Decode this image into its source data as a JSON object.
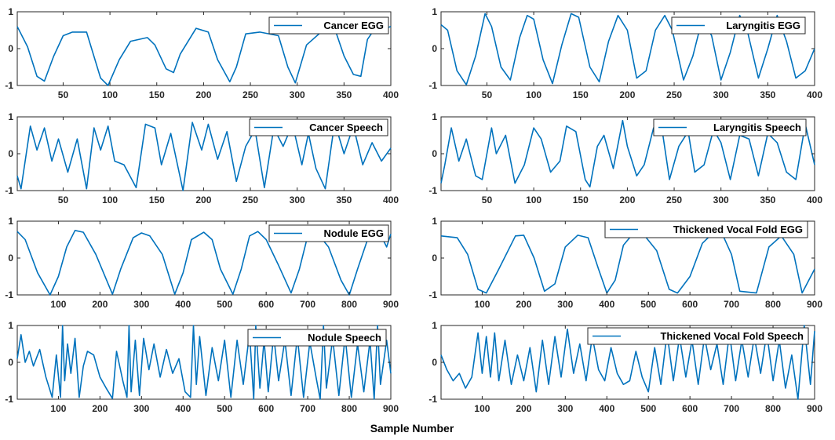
{
  "figure": {
    "xlabel": "Sample Number"
  },
  "chart_data": [
    {
      "type": "line",
      "legend": "Cancer EGG",
      "xlim": [
        1,
        400
      ],
      "ylim": [
        -1,
        1
      ],
      "xticks": [
        50,
        100,
        150,
        200,
        250,
        300,
        350,
        400
      ],
      "yticks": [
        -1,
        0,
        1
      ],
      "x": [
        1,
        12,
        22,
        30,
        40,
        50,
        60,
        75,
        90,
        98,
        110,
        122,
        140,
        148,
        160,
        168,
        175,
        192,
        205,
        215,
        228,
        235,
        245,
        260,
        280,
        290,
        298,
        310,
        330,
        340,
        350,
        360,
        368,
        375,
        385,
        395,
        400
      ],
      "y": [
        0.6,
        0.05,
        -0.75,
        -0.88,
        -0.2,
        0.35,
        0.45,
        0.45,
        -0.8,
        -1.0,
        -0.3,
        0.2,
        0.3,
        0.1,
        -0.55,
        -0.65,
        -0.15,
        0.55,
        0.45,
        -0.3,
        -0.9,
        -0.5,
        0.4,
        0.45,
        0.35,
        -0.5,
        -0.93,
        0.1,
        0.55,
        0.55,
        -0.2,
        -0.7,
        -0.75,
        0.25,
        0.62,
        0.55,
        0.6
      ],
      "color": "#0072BD"
    },
    {
      "type": "line",
      "legend": "Laryngitis EGG",
      "xlim": [
        1,
        400
      ],
      "ylim": [
        -1,
        1
      ],
      "xticks": [
        50,
        100,
        150,
        200,
        250,
        300,
        350,
        400
      ],
      "yticks": [
        -1,
        0,
        1
      ],
      "x": [
        1,
        8,
        18,
        28,
        38,
        48,
        55,
        65,
        75,
        85,
        93,
        100,
        110,
        120,
        130,
        140,
        148,
        160,
        170,
        180,
        190,
        200,
        210,
        220,
        230,
        240,
        248,
        260,
        270,
        280,
        290,
        300,
        310,
        320,
        328,
        340,
        350,
        360,
        370,
        380,
        390,
        400
      ],
      "y": [
        0.65,
        0.5,
        -0.6,
        -0.98,
        -0.2,
        0.95,
        0.6,
        -0.5,
        -0.85,
        0.3,
        0.9,
        0.8,
        -0.3,
        -0.95,
        0.1,
        0.95,
        0.85,
        -0.5,
        -0.9,
        0.2,
        0.9,
        0.5,
        -0.8,
        -0.6,
        0.5,
        0.9,
        0.5,
        -0.85,
        -0.2,
        0.8,
        0.35,
        -0.85,
        -0.1,
        0.9,
        0.5,
        -0.8,
        0.0,
        0.9,
        0.2,
        -0.8,
        -0.6,
        0.0
      ],
      "color": "#0072BD"
    },
    {
      "type": "line",
      "legend": "Cancer Speech",
      "xlim": [
        1,
        400
      ],
      "ylim": [
        -1,
        1
      ],
      "xticks": [
        50,
        100,
        150,
        200,
        250,
        300,
        350,
        400
      ],
      "yticks": [
        -1,
        0,
        1
      ],
      "x": [
        1,
        5,
        15,
        22,
        30,
        38,
        45,
        55,
        65,
        75,
        83,
        90,
        98,
        105,
        115,
        128,
        138,
        148,
        155,
        165,
        178,
        188,
        198,
        205,
        215,
        225,
        235,
        245,
        255,
        265,
        275,
        285,
        295,
        305,
        312,
        320,
        330,
        340,
        350,
        360,
        370,
        380,
        390,
        400
      ],
      "y": [
        -0.6,
        -0.95,
        0.75,
        0.1,
        0.7,
        -0.2,
        0.4,
        -0.5,
        0.4,
        -0.95,
        0.7,
        0.1,
        0.75,
        -0.2,
        -0.3,
        -0.92,
        0.8,
        0.7,
        -0.3,
        0.55,
        -1.0,
        0.85,
        0.1,
        0.8,
        -0.15,
        0.6,
        -0.75,
        0.2,
        0.65,
        -0.92,
        0.7,
        0.2,
        0.8,
        -0.3,
        0.55,
        -0.4,
        -0.95,
        0.85,
        0.0,
        0.75,
        -0.3,
        0.3,
        -0.2,
        0.15
      ],
      "color": "#0072BD"
    },
    {
      "type": "line",
      "legend": "Laryngitis Speech",
      "xlim": [
        1,
        400
      ],
      "ylim": [
        -1,
        1
      ],
      "xticks": [
        50,
        100,
        150,
        200,
        250,
        300,
        350,
        400
      ],
      "yticks": [
        -1,
        0,
        1
      ],
      "x": [
        1,
        5,
        12,
        20,
        28,
        38,
        45,
        55,
        60,
        70,
        80,
        90,
        100,
        108,
        118,
        128,
        135,
        145,
        155,
        160,
        168,
        175,
        185,
        195,
        200,
        210,
        218,
        228,
        238,
        245,
        255,
        265,
        272,
        282,
        292,
        300,
        310,
        320,
        330,
        340,
        350,
        360,
        370,
        380,
        390,
        400
      ],
      "y": [
        -0.8,
        -0.3,
        0.7,
        -0.2,
        0.4,
        -0.6,
        -0.7,
        0.7,
        0.0,
        0.5,
        -0.8,
        -0.3,
        0.7,
        0.4,
        -0.5,
        -0.2,
        0.75,
        0.6,
        -0.7,
        -0.9,
        0.2,
        0.5,
        -0.4,
        0.9,
        0.2,
        -0.6,
        -0.3,
        0.7,
        0.5,
        -0.7,
        0.2,
        0.6,
        -0.5,
        -0.3,
        0.65,
        0.3,
        -0.7,
        0.5,
        0.4,
        -0.6,
        0.55,
        0.3,
        -0.5,
        -0.7,
        0.8,
        -0.3
      ],
      "color": "#0072BD"
    },
    {
      "type": "line",
      "legend": "Nodule EGG",
      "xlim": [
        1,
        900
      ],
      "ylim": [
        -1,
        1
      ],
      "xticks": [
        100,
        200,
        300,
        400,
        500,
        600,
        700,
        800,
        900
      ],
      "yticks": [
        -1,
        0,
        1
      ],
      "x": [
        1,
        20,
        50,
        80,
        100,
        120,
        140,
        160,
        190,
        230,
        250,
        280,
        300,
        320,
        350,
        380,
        400,
        420,
        450,
        470,
        490,
        520,
        540,
        560,
        580,
        600,
        630,
        660,
        680,
        700,
        720,
        750,
        780,
        800,
        820,
        850,
        870,
        890,
        900
      ],
      "y": [
        0.72,
        0.5,
        -0.4,
        -1.0,
        -0.5,
        0.3,
        0.75,
        0.7,
        0.1,
        -0.98,
        -0.3,
        0.55,
        0.68,
        0.6,
        0.1,
        -0.98,
        -0.4,
        0.5,
        0.7,
        0.5,
        -0.3,
        -0.98,
        -0.3,
        0.6,
        0.72,
        0.5,
        -0.2,
        -0.95,
        -0.3,
        0.6,
        0.72,
        0.3,
        -0.6,
        -1.0,
        -0.3,
        0.7,
        0.75,
        0.3,
        0.65
      ],
      "color": "#0072BD"
    },
    {
      "type": "line",
      "legend": "Thickened Vocal Fold EGG",
      "xlim": [
        1,
        900
      ],
      "ylim": [
        -1,
        1
      ],
      "xticks": [
        100,
        200,
        300,
        400,
        500,
        600,
        700,
        800,
        900
      ],
      "yticks": [
        -1,
        0,
        1
      ],
      "x": [
        1,
        40,
        65,
        90,
        110,
        140,
        180,
        200,
        225,
        250,
        275,
        300,
        330,
        355,
        380,
        400,
        420,
        440,
        460,
        490,
        520,
        550,
        570,
        600,
        630,
        650,
        680,
        700,
        720,
        760,
        790,
        820,
        850,
        870,
        900
      ],
      "y": [
        0.6,
        0.55,
        0.1,
        -0.85,
        -0.95,
        -0.3,
        0.6,
        0.62,
        0.0,
        -0.9,
        -0.7,
        0.3,
        0.62,
        0.55,
        -0.3,
        -0.95,
        -0.6,
        0.35,
        0.62,
        0.62,
        0.2,
        -0.85,
        -0.95,
        -0.5,
        0.4,
        0.62,
        0.6,
        0.1,
        -0.9,
        -0.95,
        0.3,
        0.6,
        0.1,
        -0.95,
        -0.3
      ],
      "color": "#0072BD"
    },
    {
      "type": "line",
      "legend": "Nodule Speech",
      "xlim": [
        1,
        900
      ],
      "ylim": [
        -1,
        1
      ],
      "xticks": [
        100,
        200,
        300,
        400,
        500,
        600,
        700,
        800,
        900
      ],
      "yticks": [
        -1,
        0,
        1
      ],
      "x": [
        1,
        10,
        20,
        30,
        40,
        55,
        70,
        85,
        95,
        105,
        110,
        115,
        122,
        130,
        140,
        150,
        160,
        170,
        185,
        200,
        215,
        230,
        240,
        255,
        265,
        270,
        275,
        285,
        295,
        305,
        318,
        330,
        345,
        360,
        375,
        390,
        405,
        418,
        425,
        432,
        440,
        455,
        470,
        485,
        500,
        515,
        530,
        545,
        560,
        570,
        575,
        585,
        595,
        605,
        618,
        630,
        645,
        660,
        675,
        690,
        705,
        720,
        730,
        738,
        745,
        760,
        775,
        790,
        805,
        820,
        835,
        850,
        860,
        868,
        875,
        890,
        900
      ],
      "y": [
        0.1,
        0.75,
        0.0,
        0.3,
        -0.1,
        0.35,
        -0.4,
        -0.95,
        0.2,
        -0.95,
        1.0,
        -0.5,
        0.5,
        -0.3,
        0.65,
        -0.95,
        -0.1,
        0.3,
        0.2,
        -0.4,
        -0.7,
        -0.98,
        0.3,
        -0.5,
        -0.95,
        1.0,
        -0.8,
        0.6,
        -0.9,
        0.65,
        -0.2,
        0.5,
        -0.4,
        0.35,
        -0.3,
        0.1,
        -0.8,
        -0.95,
        1.0,
        -0.6,
        0.7,
        -0.9,
        0.4,
        -0.5,
        0.6,
        -0.95,
        0.6,
        -0.6,
        0.8,
        -1.0,
        1.0,
        -0.7,
        0.6,
        -0.8,
        0.75,
        -0.5,
        0.6,
        -0.9,
        0.7,
        -0.95,
        0.55,
        -0.4,
        -1.0,
        1.0,
        -0.7,
        0.65,
        -0.9,
        0.7,
        -0.95,
        0.5,
        -0.8,
        0.6,
        -1.0,
        1.0,
        -0.6,
        0.6,
        -0.3
      ],
      "color": "#0072BD"
    },
    {
      "type": "line",
      "legend": "Thickened Vocal Fold Speech",
      "xlim": [
        1,
        900
      ],
      "ylim": [
        -1,
        1
      ],
      "xticks": [
        100,
        200,
        300,
        400,
        500,
        600,
        700,
        800,
        900
      ],
      "yticks": [
        -1,
        0,
        1
      ],
      "x": [
        1,
        15,
        30,
        45,
        60,
        75,
        90,
        100,
        110,
        120,
        130,
        140,
        155,
        170,
        185,
        200,
        215,
        230,
        245,
        260,
        275,
        290,
        305,
        320,
        335,
        350,
        365,
        380,
        395,
        410,
        425,
        440,
        455,
        470,
        485,
        500,
        515,
        530,
        545,
        560,
        575,
        590,
        605,
        620,
        635,
        650,
        665,
        680,
        695,
        710,
        725,
        740,
        755,
        770,
        785,
        800,
        815,
        830,
        845,
        860,
        875,
        890,
        900
      ],
      "y": [
        0.2,
        -0.2,
        -0.5,
        -0.3,
        -0.7,
        -0.4,
        0.8,
        -0.3,
        0.7,
        -0.4,
        0.8,
        -0.5,
        0.6,
        -0.6,
        0.2,
        -0.5,
        0.4,
        -0.8,
        0.6,
        -0.6,
        0.7,
        -0.4,
        0.9,
        -0.3,
        0.5,
        -0.5,
        0.7,
        -0.2,
        -0.5,
        0.4,
        -0.3,
        -0.6,
        -0.5,
        0.3,
        -0.4,
        -0.8,
        0.4,
        -0.6,
        0.8,
        -0.5,
        0.7,
        -0.4,
        0.6,
        -0.6,
        0.7,
        -0.2,
        0.5,
        -0.6,
        0.8,
        -0.5,
        0.6,
        -0.4,
        0.7,
        -0.3,
        0.8,
        -0.5,
        0.6,
        -0.7,
        0.2,
        -1.0,
        1.0,
        -0.6,
        0.85
      ],
      "color": "#0072BD"
    }
  ]
}
